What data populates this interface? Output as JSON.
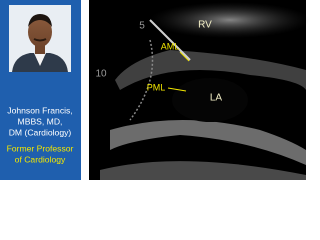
{
  "presenter": {
    "name_lines": [
      "Johnson Francis,",
      "MBBS, MD,",
      "DM (Cardiology)"
    ],
    "title_lines": [
      "Former Professor",
      "of Cardiology"
    ]
  },
  "echo_image": {
    "depth_markers": [
      "5",
      "10"
    ],
    "labels": [
      "RV",
      "AML",
      "PML",
      "LA"
    ]
  }
}
